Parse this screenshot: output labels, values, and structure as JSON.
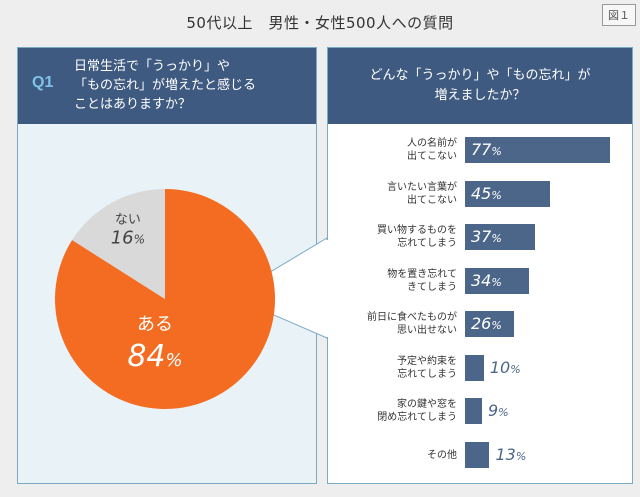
{
  "title": "50代以上　男性・女性500人への質問",
  "figure_label": "図１",
  "q1": {
    "label": "Q1",
    "question_line1": "日常生活で「うっかり」や",
    "question_line2": "「もの忘れ」が増えたと感じる",
    "question_line3": "ことはありますか？"
  },
  "q2": {
    "question_line1": "どんな「うっかり」や「もの忘れ」が",
    "question_line2": "増えましたか？"
  },
  "colors": {
    "yes": "#f36c21",
    "no": "#d9d9d9",
    "bar": "#4c6689",
    "header": "#3f5a80"
  },
  "chart_data": [
    {
      "type": "pie",
      "slices": [
        {
          "label": "ある",
          "value": 84,
          "display": "84"
        },
        {
          "label": "ない",
          "value": 16,
          "display": "16"
        }
      ],
      "unit": "%"
    },
    {
      "type": "bar",
      "orientation": "horizontal",
      "unit": "%",
      "xlim": [
        0,
        77
      ],
      "categories": [
        {
          "line1": "人の名前が",
          "line2": "出てこない",
          "value": 77
        },
        {
          "line1": "言いたい言葉が",
          "line2": "出てこない",
          "value": 45
        },
        {
          "line1": "買い物するものを",
          "line2": "忘れてしまう",
          "value": 37
        },
        {
          "line1": "物を置き忘れて",
          "line2": "きてしまう",
          "value": 34
        },
        {
          "line1": "前日に食べたものが",
          "line2": "思い出せない",
          "value": 26
        },
        {
          "line1": "予定や約束を",
          "line2": "忘れてしまう",
          "value": 10
        },
        {
          "line1": "家の鍵や窓を",
          "line2": "閉め忘れてしまう",
          "value": 9
        },
        {
          "line1": "その他",
          "line2": "",
          "value": 13
        }
      ]
    }
  ]
}
